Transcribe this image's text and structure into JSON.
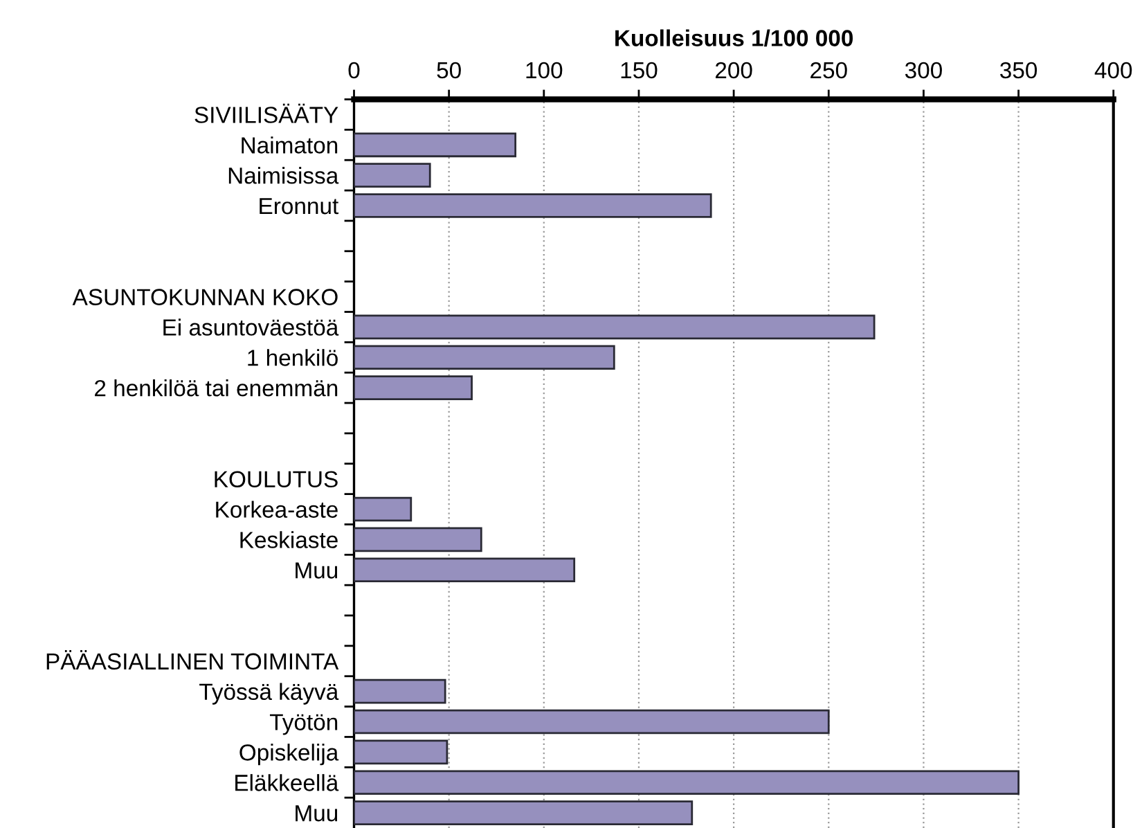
{
  "chart_data": {
    "type": "bar",
    "orientation": "horizontal",
    "xlabel": "Kuolleisuus 1/100 000",
    "categories": [
      "SIVIILISÄÄTY",
      "Naimaton",
      "Naimisissa",
      "Eronnut",
      null,
      null,
      "ASUNTOKUNNAN KOKO",
      "Ei asuntoväestöä",
      "1 henkilö",
      "2 henkilöä tai enemmän",
      null,
      null,
      "KOULUTUS",
      "Korkea-aste",
      "Keskiaste",
      "Muu",
      null,
      null,
      "PÄÄASIALLINEN TOIMINTA",
      "Työssä käyvä",
      "Työtön",
      "Opiskelija",
      "Eläkkeellä",
      "Muu"
    ],
    "values": [
      null,
      85,
      40,
      188,
      null,
      null,
      null,
      274,
      137,
      62,
      null,
      null,
      null,
      30,
      67,
      116,
      null,
      null,
      null,
      48,
      250,
      49,
      350,
      178
    ],
    "color": "#9690be",
    "xlim": [
      0,
      400
    ],
    "xticks": [
      0,
      50,
      100,
      150,
      200,
      250,
      300,
      350,
      400
    ],
    "grid": "x",
    "legend": false
  }
}
